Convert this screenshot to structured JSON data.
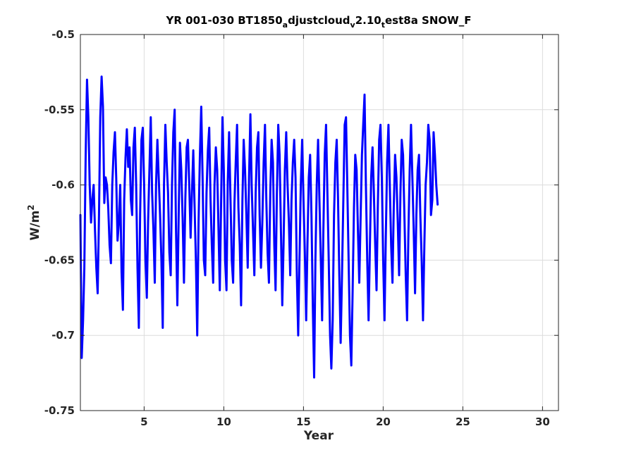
{
  "chart_data": {
    "type": "line",
    "title": {
      "p1": "YR 001-030 BT1850",
      "s1": "a",
      "p2": "djustcloud",
      "s2": "v",
      "p3": "2.10",
      "s3": "t",
      "p4": "est8a SNOW_F"
    },
    "xlabel": "Year",
    "ylabel": {
      "base": "W/m",
      "sup": "2"
    },
    "xlim": [
      1,
      31
    ],
    "ylim": [
      -0.75,
      -0.5
    ],
    "xticks": [
      5,
      10,
      15,
      20,
      25,
      30
    ],
    "yticks": [
      -0.75,
      -0.7,
      -0.65,
      -0.6,
      -0.55,
      -0.5
    ],
    "xtick_labels": [
      "5",
      "10",
      "15",
      "20",
      "25",
      "30"
    ],
    "ytick_labels": [
      "-0.75",
      "-0.7",
      "-0.65",
      "-0.6",
      "-0.55",
      "-0.5"
    ],
    "grid": true,
    "line_color": "#0000ff",
    "x_start": 1.0,
    "x_step": 0.08333,
    "series": [
      {
        "values": [
          -0.62,
          -0.715,
          -0.69,
          -0.655,
          -0.58,
          -0.53,
          -0.555,
          -0.6,
          -0.625,
          -0.61,
          -0.6,
          -0.63,
          -0.655,
          -0.672,
          -0.62,
          -0.555,
          -0.528,
          -0.548,
          -0.612,
          -0.595,
          -0.6,
          -0.615,
          -0.64,
          -0.652,
          -0.6,
          -0.578,
          -0.565,
          -0.595,
          -0.637,
          -0.625,
          -0.6,
          -0.658,
          -0.683,
          -0.61,
          -0.582,
          -0.563,
          -0.588,
          -0.575,
          -0.61,
          -0.62,
          -0.575,
          -0.562,
          -0.6,
          -0.655,
          -0.695,
          -0.62,
          -0.57,
          -0.562,
          -0.6,
          -0.65,
          -0.675,
          -0.625,
          -0.59,
          -0.555,
          -0.605,
          -0.63,
          -0.665,
          -0.6,
          -0.57,
          -0.595,
          -0.62,
          -0.65,
          -0.695,
          -0.6,
          -0.56,
          -0.585,
          -0.605,
          -0.645,
          -0.66,
          -0.6,
          -0.565,
          -0.55,
          -0.63,
          -0.68,
          -0.62,
          -0.572,
          -0.59,
          -0.622,
          -0.665,
          -0.61,
          -0.575,
          -0.57,
          -0.6,
          -0.635,
          -0.605,
          -0.577,
          -0.615,
          -0.65,
          -0.7,
          -0.625,
          -0.58,
          -0.548,
          -0.595,
          -0.65,
          -0.66,
          -0.605,
          -0.577,
          -0.562,
          -0.61,
          -0.64,
          -0.665,
          -0.6,
          -0.575,
          -0.59,
          -0.63,
          -0.67,
          -0.61,
          -0.555,
          -0.59,
          -0.65,
          -0.67,
          -0.598,
          -0.565,
          -0.608,
          -0.65,
          -0.665,
          -0.612,
          -0.585,
          -0.56,
          -0.615,
          -0.64,
          -0.68,
          -0.61,
          -0.57,
          -0.59,
          -0.62,
          -0.655,
          -0.595,
          -0.553,
          -0.6,
          -0.63,
          -0.66,
          -0.605,
          -0.575,
          -0.565,
          -0.62,
          -0.655,
          -0.625,
          -0.585,
          -0.56,
          -0.61,
          -0.645,
          -0.665,
          -0.605,
          -0.57,
          -0.585,
          -0.64,
          -0.67,
          -0.605,
          -0.56,
          -0.58,
          -0.63,
          -0.68,
          -0.64,
          -0.59,
          -0.565,
          -0.6,
          -0.625,
          -0.66,
          -0.61,
          -0.585,
          -0.57,
          -0.595,
          -0.66,
          -0.7,
          -0.65,
          -0.6,
          -0.57,
          -0.61,
          -0.645,
          -0.69,
          -0.64,
          -0.595,
          -0.58,
          -0.62,
          -0.68,
          -0.728,
          -0.65,
          -0.6,
          -0.57,
          -0.61,
          -0.648,
          -0.69,
          -0.63,
          -0.58,
          -0.56,
          -0.605,
          -0.65,
          -0.7,
          -0.722,
          -0.69,
          -0.62,
          -0.585,
          -0.57,
          -0.61,
          -0.66,
          -0.705,
          -0.66,
          -0.61,
          -0.56,
          -0.555,
          -0.6,
          -0.65,
          -0.7,
          -0.72,
          -0.67,
          -0.615,
          -0.58,
          -0.59,
          -0.63,
          -0.665,
          -0.622,
          -0.58,
          -0.56,
          -0.54,
          -0.6,
          -0.65,
          -0.69,
          -0.64,
          -0.595,
          -0.575,
          -0.605,
          -0.64,
          -0.67,
          -0.615,
          -0.57,
          -0.56,
          -0.595,
          -0.65,
          -0.69,
          -0.635,
          -0.585,
          -0.56,
          -0.6,
          -0.64,
          -0.665,
          -0.615,
          -0.58,
          -0.595,
          -0.625,
          -0.66,
          -0.605,
          -0.57,
          -0.58,
          -0.62,
          -0.66,
          -0.69,
          -0.632,
          -0.59,
          -0.56,
          -0.595,
          -0.63,
          -0.672,
          -0.62,
          -0.59,
          -0.58,
          -0.62,
          -0.65,
          -0.69,
          -0.64,
          -0.6,
          -0.585,
          -0.56,
          -0.57,
          -0.62,
          -0.61,
          -0.565,
          -0.58,
          -0.6,
          -0.613
        ]
      }
    ]
  }
}
